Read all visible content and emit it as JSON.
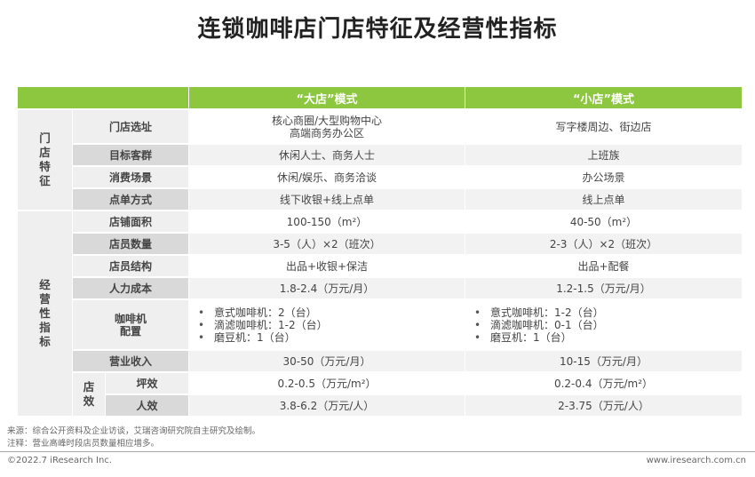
{
  "title": "连锁咖啡店门店特征及经营性指标",
  "header": {
    "big": "“大店”模式",
    "small": "“小店”模式"
  },
  "groups": {
    "store_features": "门\n店\n特\n征",
    "operating_metrics": "经\n营\n性\n指\n标",
    "store_efficiency": "店\n效"
  },
  "rows": [
    {
      "label": "门店选址",
      "big": "核心商圈/大型购物中心\n高端商务办公区",
      "small": "写字楼周边、街边店"
    },
    {
      "label": "目标客群",
      "big": "休闲人士、商务人士",
      "small": "上班族"
    },
    {
      "label": "消费场景",
      "big": "休闲/娱乐、商务洽谈",
      "small": "办公场景"
    },
    {
      "label": "点单方式",
      "big": "线下收银+线上点单",
      "small": "线上点单"
    },
    {
      "label": "店铺面积",
      "big": "100-150（m²）",
      "small": "40-50（m²）"
    },
    {
      "label": "店员数量",
      "big": "3-5（人）×2（班次）",
      "small": "2-3（人）×2（班次）"
    },
    {
      "label": "店员结构",
      "big": "出品+收银+保洁",
      "small": "出品+配餐"
    },
    {
      "label": "人力成本",
      "big": "1.8-2.4（万元/月）",
      "small": "1.2-1.5（万元/月）"
    },
    {
      "label": "咖啡机\n配置",
      "big_list": [
        "意式咖啡机：2（台）",
        "滴滤咖啡机：1-2（台）",
        "磨豆机：1（台）"
      ],
      "small_list": [
        "意式咖啡机：1-2（台）",
        "滴滤咖啡机：0-1（台）",
        "磨豆机：1（台）"
      ]
    },
    {
      "label": "营业收入",
      "big": "30-50（万元/月）",
      "small": "10-15（万元/月）"
    },
    {
      "label": "坪效",
      "big": "0.2-0.5（万元/m²）",
      "small": "0.2-0.4（万元/m²）"
    },
    {
      "label": "人效",
      "big": "3.8-6.2（万元/人）",
      "small": "2-3.75（万元/人）"
    }
  ],
  "footer": {
    "source": "来源：综合公开资料及企业访谈，艾瑞咨询研究院自主研究及绘制。",
    "note": "注释：营业高峰时段店员数量相应增多。",
    "copyright": "©2022.7 iResearch Inc.",
    "url": "www.iresearch.com.cn"
  },
  "colors": {
    "header_green": "#8dc63f",
    "label_light": "#efefef",
    "label_dark": "#d9d9d9"
  }
}
